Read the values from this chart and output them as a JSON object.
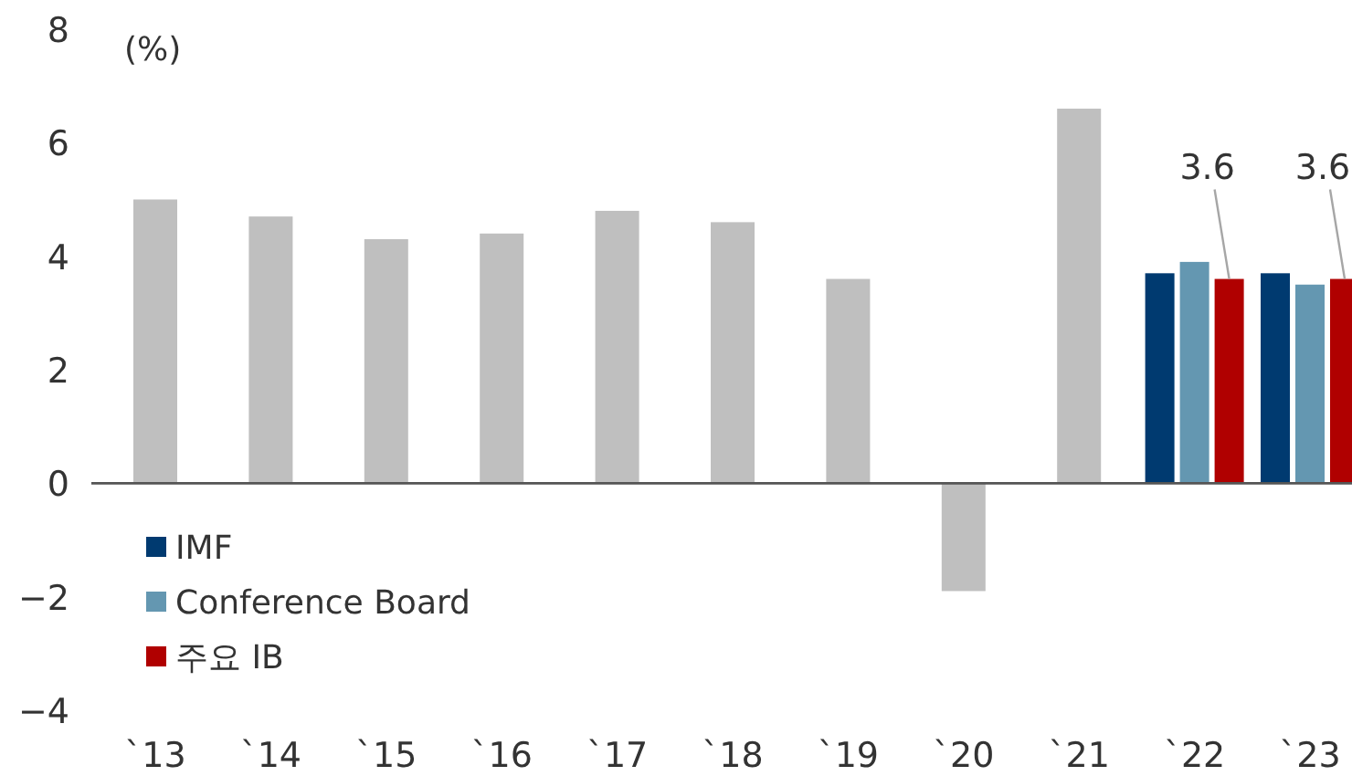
{
  "chart_data": {
    "type": "bar",
    "ylabel": "(%)",
    "ylim": [
      -4,
      8
    ],
    "yticks": [
      -4,
      -2,
      0,
      2,
      4,
      6,
      8
    ],
    "legend": "bottom left",
    "categories": [
      "`13",
      "`14",
      "`15",
      "`16",
      "`17",
      "`18",
      "`19",
      "`20",
      "`21",
      "`22",
      "`23"
    ],
    "series": [
      {
        "color": "#bfbfbf",
        "values": [
          5.0,
          4.7,
          4.3,
          4.4,
          4.8,
          4.6,
          3.6,
          -1.9,
          6.6,
          null,
          null
        ]
      },
      {
        "name": "IMF",
        "color": "#003a70",
        "values": [
          null,
          null,
          null,
          null,
          null,
          null,
          null,
          null,
          null,
          3.7,
          3.7
        ]
      },
      {
        "name": "Conference Board",
        "color": "#6497b1",
        "values": [
          null,
          null,
          null,
          null,
          null,
          null,
          null,
          null,
          null,
          3.9,
          3.5
        ]
      },
      {
        "name": "주요 IB",
        "color": "#b00000",
        "values": [
          null,
          null,
          null,
          null,
          null,
          null,
          null,
          null,
          null,
          3.6,
          3.6
        ],
        "value_labels": [
          null,
          null,
          null,
          null,
          null,
          null,
          null,
          null,
          null,
          "3.6",
          "3.6"
        ]
      }
    ]
  }
}
